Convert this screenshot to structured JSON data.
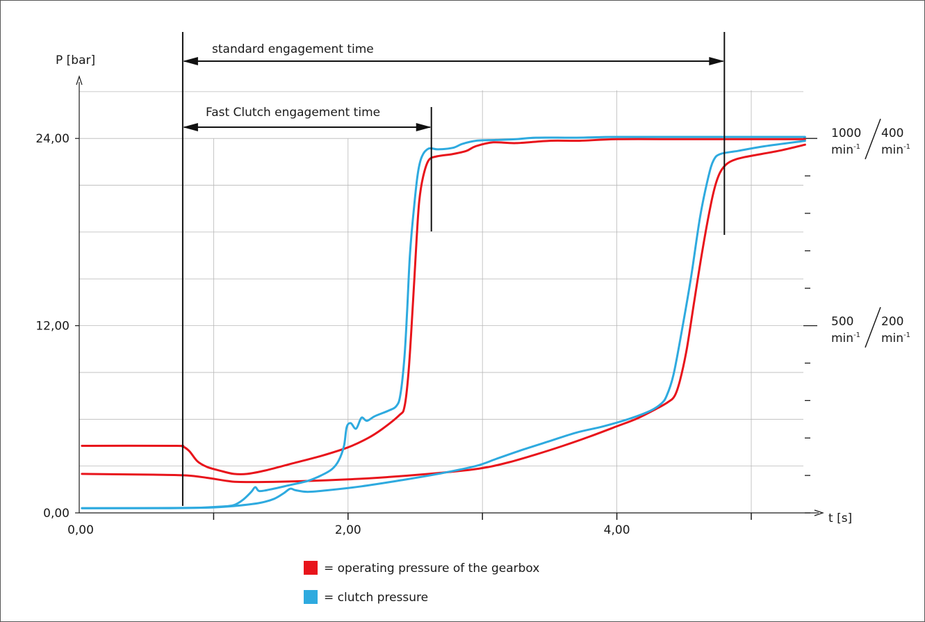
{
  "chart_data": {
    "type": "line",
    "ylabel": "P [bar]",
    "xlabel": "t [s]",
    "xlim": [
      0,
      5.45
    ],
    "ylim": [
      0,
      27
    ],
    "x_ticks": [
      {
        "value": 0,
        "label": "0,00"
      },
      {
        "value": 2,
        "label": "2,00"
      },
      {
        "value": 4,
        "label": "4,00"
      }
    ],
    "y_ticks": [
      {
        "value": 0,
        "label": "0,00"
      },
      {
        "value": 12,
        "label": "12,00"
      },
      {
        "value": 24,
        "label": "24,00"
      }
    ],
    "grid": true,
    "annotations": {
      "standard": {
        "label": "standard engagement time",
        "x_start": 0.77,
        "x_end": 4.8
      },
      "fast": {
        "label": "Fast Clutch engagement time",
        "x_start": 0.77,
        "x_end": 2.62
      }
    },
    "rpm_scale": {
      "upper": {
        "y": 24,
        "left_value": "1000",
        "right_value": "400",
        "unit": "min",
        "exp": "-1"
      },
      "lower": {
        "y": 12,
        "left_value": "500",
        "right_value": "200",
        "unit": "min",
        "exp": "-1"
      }
    },
    "series": [
      {
        "name": "= operating pressure of the gearbox",
        "color": "#e8141b",
        "curves": [
          [
            [
              0.02,
              4.3
            ],
            [
              0.7,
              4.3
            ],
            [
              0.77,
              4.25
            ],
            [
              0.82,
              3.95
            ],
            [
              0.88,
              3.3
            ],
            [
              0.95,
              2.95
            ],
            [
              1.05,
              2.7
            ],
            [
              1.15,
              2.5
            ],
            [
              1.25,
              2.5
            ],
            [
              1.4,
              2.75
            ],
            [
              1.6,
              3.2
            ],
            [
              1.8,
              3.65
            ],
            [
              2.0,
              4.2
            ],
            [
              2.15,
              4.8
            ],
            [
              2.25,
              5.35
            ],
            [
              2.38,
              6.25
            ],
            [
              2.42,
              6.8
            ],
            [
              2.45,
              9.0
            ],
            [
              2.48,
              13.0
            ],
            [
              2.51,
              17.5
            ],
            [
              2.53,
              20.0
            ],
            [
              2.56,
              21.6
            ],
            [
              2.6,
              22.6
            ],
            [
              2.66,
              22.85
            ],
            [
              2.78,
              23.0
            ],
            [
              2.88,
              23.2
            ],
            [
              2.95,
              23.5
            ],
            [
              3.08,
              23.75
            ],
            [
              3.25,
              23.7
            ],
            [
              3.5,
              23.85
            ],
            [
              3.72,
              23.85
            ],
            [
              4.0,
              23.95
            ],
            [
              4.5,
              23.95
            ],
            [
              5.0,
              23.95
            ],
            [
              5.4,
              23.95
            ]
          ],
          [
            [
              0.02,
              2.5
            ],
            [
              0.55,
              2.45
            ],
            [
              0.8,
              2.4
            ],
            [
              0.95,
              2.25
            ],
            [
              1.1,
              2.05
            ],
            [
              1.2,
              1.98
            ],
            [
              1.5,
              2.0
            ],
            [
              2.0,
              2.15
            ],
            [
              2.3,
              2.3
            ],
            [
              2.6,
              2.5
            ],
            [
              2.9,
              2.75
            ],
            [
              3.05,
              2.95
            ],
            [
              3.2,
              3.25
            ],
            [
              3.4,
              3.75
            ],
            [
              3.6,
              4.3
            ],
            [
              3.8,
              4.9
            ],
            [
              4.0,
              5.55
            ],
            [
              4.15,
              6.05
            ],
            [
              4.3,
              6.7
            ],
            [
              4.38,
              7.1
            ],
            [
              4.43,
              7.5
            ],
            [
              4.47,
              8.5
            ],
            [
              4.52,
              10.5
            ],
            [
              4.58,
              13.8
            ],
            [
              4.64,
              17.0
            ],
            [
              4.7,
              19.8
            ],
            [
              4.74,
              21.2
            ],
            [
              4.78,
              22.0
            ],
            [
              4.84,
              22.5
            ],
            [
              4.95,
              22.8
            ],
            [
              5.2,
              23.2
            ],
            [
              5.4,
              23.6
            ]
          ]
        ]
      },
      {
        "name": "= clutch pressure",
        "color": "#2eaadf",
        "curves": [
          [
            [
              0.02,
              0.3
            ],
            [
              0.6,
              0.3
            ],
            [
              0.85,
              0.32
            ],
            [
              1.05,
              0.4
            ],
            [
              1.15,
              0.5
            ],
            [
              1.22,
              0.85
            ],
            [
              1.28,
              1.35
            ],
            [
              1.31,
              1.65
            ],
            [
              1.34,
              1.4
            ],
            [
              1.42,
              1.5
            ],
            [
              1.55,
              1.75
            ],
            [
              1.7,
              2.05
            ],
            [
              1.8,
              2.4
            ],
            [
              1.88,
              2.8
            ],
            [
              1.93,
              3.35
            ],
            [
              1.97,
              4.3
            ],
            [
              1.99,
              5.5
            ],
            [
              2.02,
              5.75
            ],
            [
              2.06,
              5.4
            ],
            [
              2.1,
              6.1
            ],
            [
              2.14,
              5.9
            ],
            [
              2.2,
              6.2
            ],
            [
              2.3,
              6.55
            ],
            [
              2.36,
              6.85
            ],
            [
              2.39,
              7.6
            ],
            [
              2.42,
              10.0
            ],
            [
              2.44,
              13.0
            ],
            [
              2.46,
              16.5
            ],
            [
              2.49,
              19.5
            ],
            [
              2.52,
              21.8
            ],
            [
              2.55,
              22.85
            ],
            [
              2.6,
              23.35
            ],
            [
              2.67,
              23.3
            ],
            [
              2.78,
              23.4
            ],
            [
              2.85,
              23.65
            ],
            [
              2.95,
              23.85
            ],
            [
              3.1,
              23.9
            ],
            [
              3.25,
              23.95
            ],
            [
              3.4,
              24.05
            ],
            [
              3.7,
              24.05
            ],
            [
              4.0,
              24.1
            ],
            [
              4.5,
              24.1
            ],
            [
              5.0,
              24.1
            ],
            [
              5.4,
              24.1
            ]
          ],
          [
            [
              0.02,
              0.3
            ],
            [
              0.8,
              0.32
            ],
            [
              1.0,
              0.35
            ],
            [
              1.2,
              0.48
            ],
            [
              1.35,
              0.65
            ],
            [
              1.45,
              0.9
            ],
            [
              1.52,
              1.25
            ],
            [
              1.57,
              1.55
            ],
            [
              1.61,
              1.45
            ],
            [
              1.7,
              1.35
            ],
            [
              1.85,
              1.45
            ],
            [
              2.1,
              1.7
            ],
            [
              2.4,
              2.1
            ],
            [
              2.7,
              2.55
            ],
            [
              2.95,
              3.0
            ],
            [
              3.1,
              3.45
            ],
            [
              3.3,
              4.05
            ],
            [
              3.5,
              4.6
            ],
            [
              3.7,
              5.15
            ],
            [
              3.9,
              5.55
            ],
            [
              4.1,
              6.05
            ],
            [
              4.25,
              6.55
            ],
            [
              4.33,
              7.0
            ],
            [
              4.37,
              7.5
            ],
            [
              4.42,
              8.8
            ],
            [
              4.48,
              11.5
            ],
            [
              4.55,
              15.0
            ],
            [
              4.62,
              19.0
            ],
            [
              4.68,
              21.5
            ],
            [
              4.72,
              22.6
            ],
            [
              4.77,
              23.0
            ],
            [
              4.9,
              23.2
            ],
            [
              5.1,
              23.5
            ],
            [
              5.4,
              23.85
            ]
          ]
        ]
      }
    ]
  }
}
